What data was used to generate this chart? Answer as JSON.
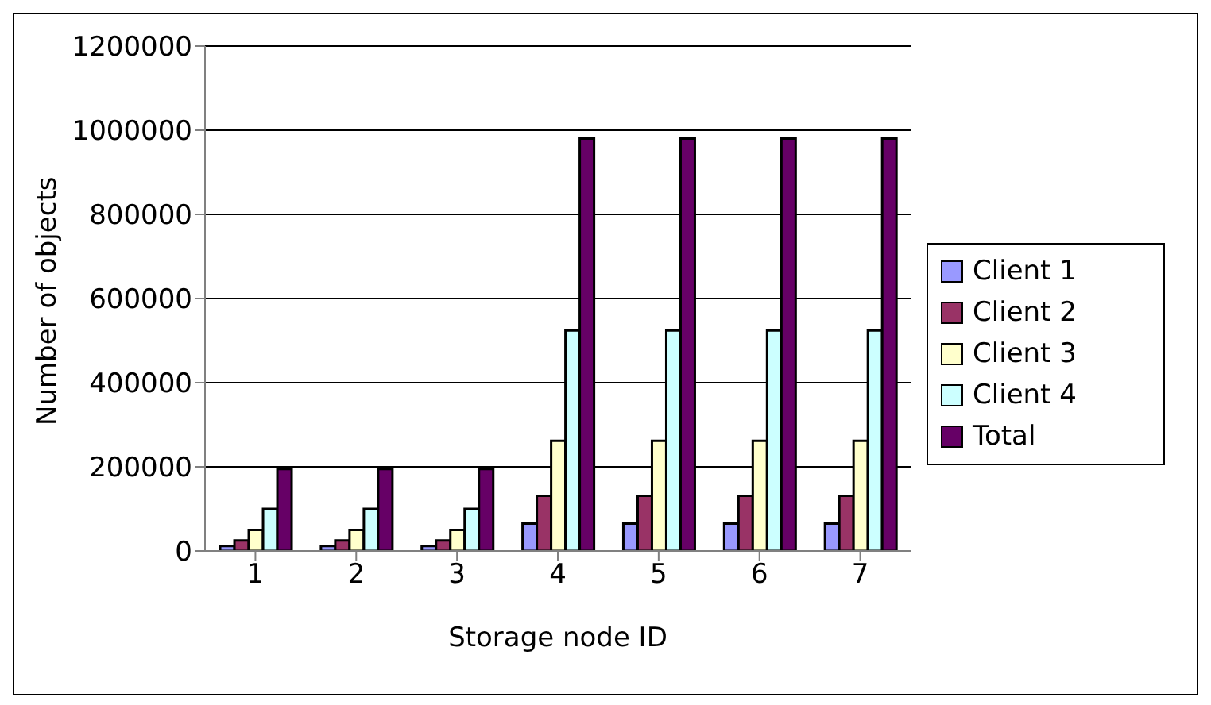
{
  "chart_data": {
    "type": "bar",
    "xlabel": "Storage node ID",
    "ylabel": "Number of objects",
    "categories": [
      "1",
      "2",
      "3",
      "4",
      "5",
      "6",
      "7"
    ],
    "series": [
      {
        "name": "Client 1",
        "color": "#9999ff",
        "values": [
          12000,
          12000,
          12000,
          65000,
          65000,
          65000,
          65000
        ]
      },
      {
        "name": "Client 2",
        "color": "#993366",
        "values": [
          25000,
          25000,
          25000,
          131000,
          131000,
          131000,
          131000
        ]
      },
      {
        "name": "Client 3",
        "color": "#ffffcc",
        "values": [
          50000,
          50000,
          50000,
          262000,
          262000,
          262000,
          262000
        ]
      },
      {
        "name": "Client 4",
        "color": "#ccffff",
        "values": [
          100000,
          100000,
          100000,
          524000,
          524000,
          524000,
          524000
        ]
      },
      {
        "name": "Total",
        "color": "#660066",
        "values": [
          195000,
          195000,
          195000,
          980000,
          980000,
          980000,
          980000
        ]
      }
    ],
    "ylim": [
      0,
      1200000
    ],
    "yticks": [
      0,
      200000,
      400000,
      600000,
      800000,
      1000000,
      1200000
    ],
    "grid": "y",
    "legend": "right"
  }
}
